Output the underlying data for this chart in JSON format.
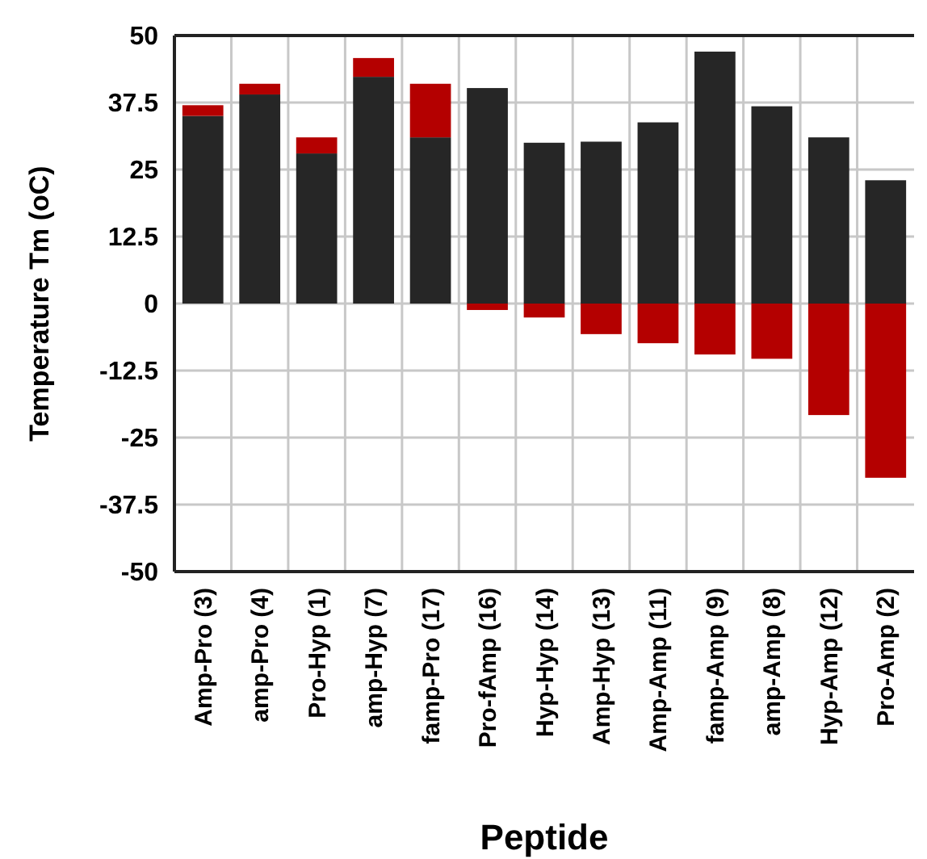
{
  "chart_data": {
    "type": "bar",
    "stacked": true,
    "xlabel": "Peptide",
    "ylabel": "Temperature Tm (oC)",
    "categories": [
      "Amp-Pro (3)",
      "amp-Pro (4)",
      "Pro-Hyp (1)",
      "amp-Hyp (7)",
      "famp-Pro (17)",
      "Pro-fAmp (16)",
      "Hyp-Hyp (14)",
      "Amp-Hyp (13)",
      "Amp-Amp (11)",
      "famp-Amp (9)",
      "amp-Amp (8)",
      "Hyp-Amp (12)",
      "Pro-Amp (2)"
    ],
    "series": [
      {
        "color": "#262626",
        "values": [
          35,
          39,
          28,
          42.3,
          31,
          40.2,
          30,
          30.2,
          33.8,
          47,
          36.8,
          31,
          23
        ]
      },
      {
        "color": "#b40000",
        "values": [
          2,
          2,
          3,
          3.5,
          10,
          -1.2,
          -2.6,
          -5.7,
          -7.4,
          -9.5,
          -10.3,
          -20.8,
          -32.5
        ]
      }
    ],
    "ylim": [
      -50,
      50
    ],
    "yticks": [
      -50,
      -37.5,
      -25,
      -12.5,
      0,
      12.5,
      25,
      37.5,
      50
    ],
    "grid": true
  }
}
